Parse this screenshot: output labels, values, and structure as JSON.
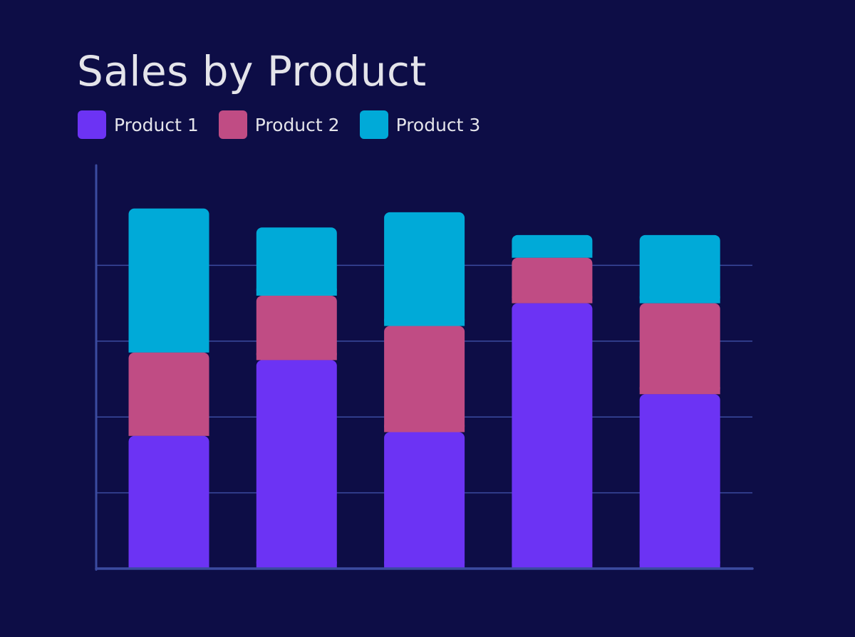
{
  "chart_data": {
    "type": "bar",
    "stacked": true,
    "title": "Sales by Product",
    "xlabel": "",
    "ylabel": "",
    "categories": [
      "",
      "",
      "",
      "",
      ""
    ],
    "series": [
      {
        "name": "Product 1",
        "color": "#6c33f4",
        "values": [
          35,
          55,
          36,
          70,
          46
        ]
      },
      {
        "name": "Product 2",
        "color": "#c04c84",
        "values": [
          22,
          17,
          28,
          12,
          24
        ]
      },
      {
        "name": "Product 3",
        "color": "#00aad8",
        "values": [
          38,
          18,
          30,
          6,
          18
        ]
      }
    ],
    "ylim": [
      0,
      100
    ],
    "grid": true,
    "legend": "top-left"
  },
  "colors": {
    "background": "#0d0d46",
    "axis": "#3b4ba0",
    "grid": "#3b4ba0",
    "text": "#e4e4ea"
  }
}
